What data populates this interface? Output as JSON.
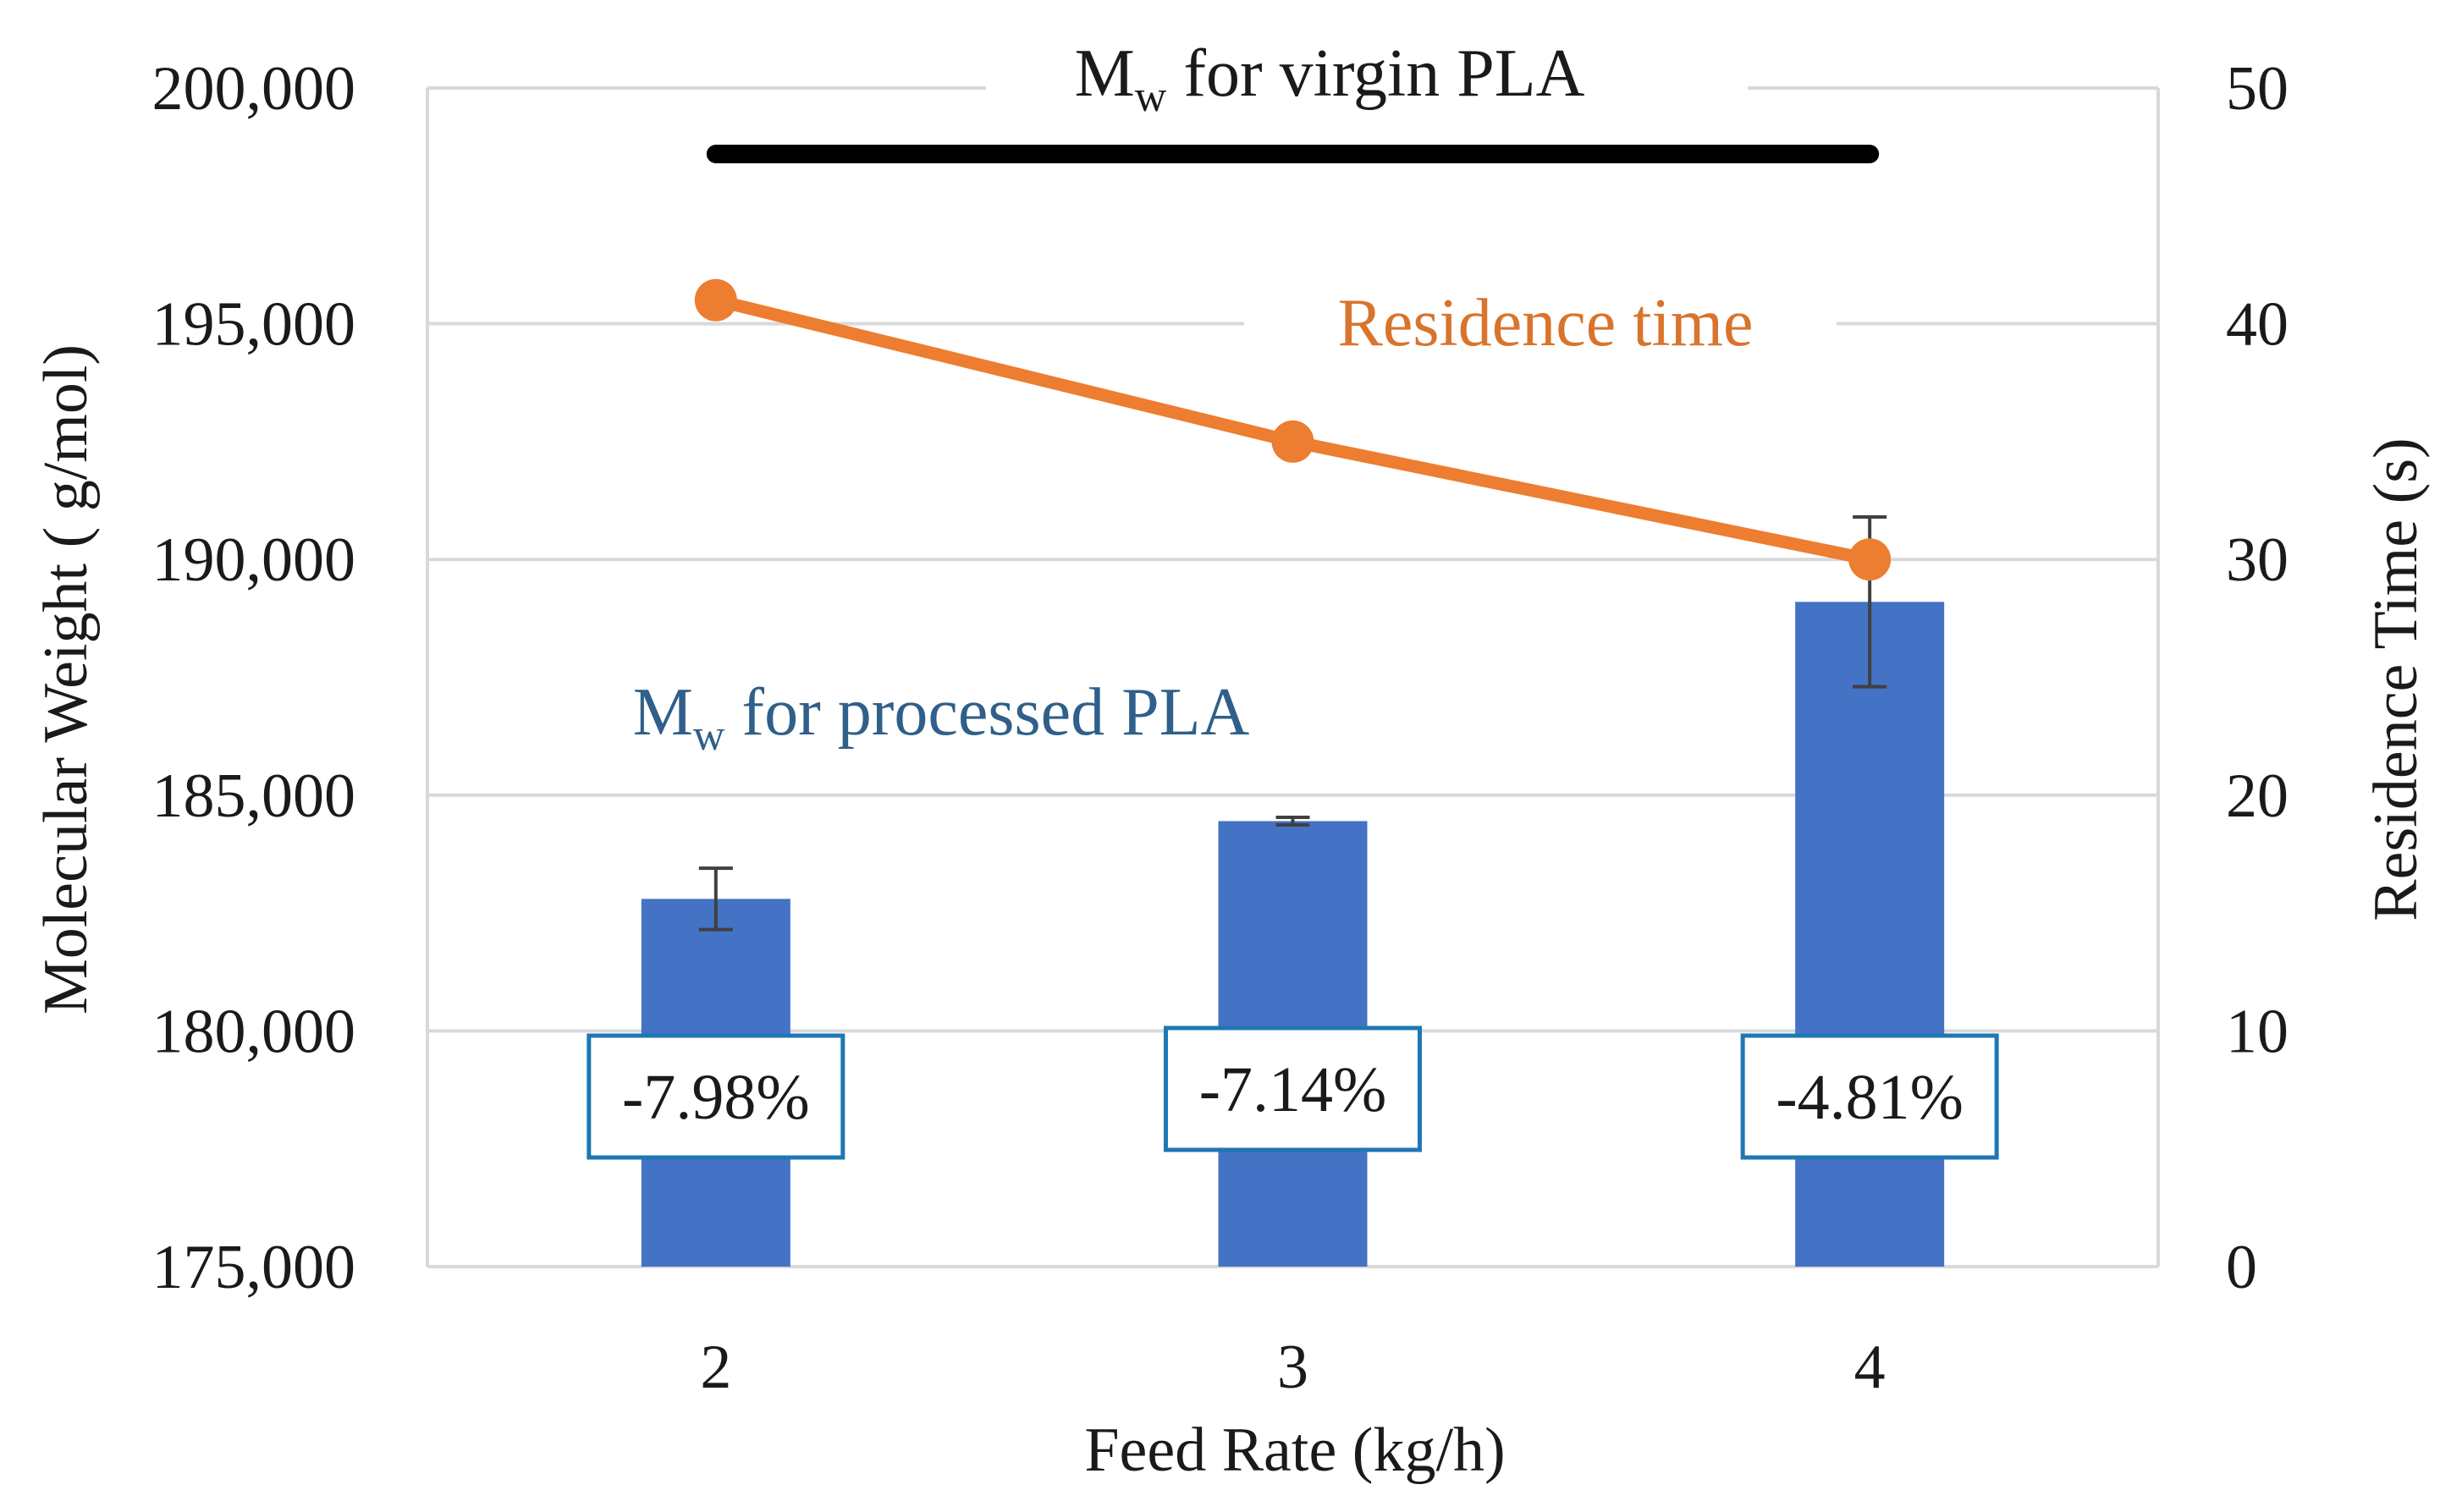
{
  "chart_data": {
    "type": "bar",
    "title": "",
    "xlabel": "Feed Rate (kg/h)",
    "ylabel": "Molecular Weight ( g/mol)",
    "y2label": "Residence Time (s)",
    "categories": [
      "2",
      "3",
      "4"
    ],
    "ylim": [
      175000,
      200000
    ],
    "y2lim": [
      0,
      50
    ],
    "y_ticks": [
      "175,000",
      "180,000",
      "185,000",
      "190,000",
      "195,000",
      "200,000"
    ],
    "y_tick_values": [
      175000,
      180000,
      185000,
      190000,
      195000,
      200000
    ],
    "y2_ticks": [
      "0",
      "10",
      "20",
      "30",
      "40",
      "50"
    ],
    "y2_tick_values": [
      0,
      10,
      20,
      30,
      40,
      50
    ],
    "grid": true,
    "series": [
      {
        "name": "Mw for processed PLA",
        "kind": "bar",
        "axis": "left",
        "values": [
          182800,
          184450,
          189100
        ],
        "error": [
          650,
          80,
          1800
        ],
        "color": "#4472C4"
      },
      {
        "name": "Residence time",
        "kind": "line",
        "axis": "right",
        "values": [
          41,
          35,
          30
        ],
        "color": "#ED7D31"
      },
      {
        "name": "Mw for virgin PLA",
        "kind": "reference",
        "axis": "left",
        "value": 198600,
        "x_range": [
          "2",
          "4"
        ],
        "color": "#000000"
      }
    ],
    "annotations": {
      "virgin": {
        "main": "M",
        "sub": "w",
        "rest": " for virgin PLA"
      },
      "processed": {
        "main": "M",
        "sub": "w",
        "rest": " for processed PLA"
      },
      "residence": "Residence time"
    },
    "percent_labels": [
      "-7.98%",
      "-7.14%",
      "-4.81%"
    ],
    "colors": {
      "bar": "#4472C4",
      "line": "#ED7D31",
      "reference": "#000000",
      "grid": "#D9D9D9",
      "label_border": "#1F77B4",
      "processed_text": "#2F5F8A",
      "residence_text": "#D9742C"
    }
  }
}
